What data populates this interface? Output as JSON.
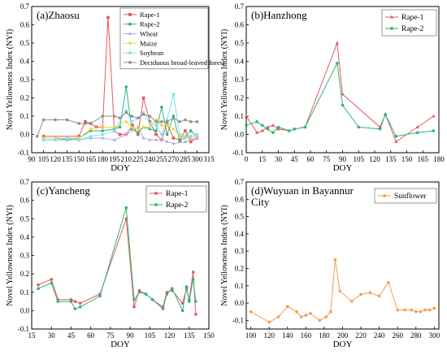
{
  "chart_data": [
    {
      "panel": "a",
      "type": "line",
      "title": "(a)Zhaosu",
      "xlabel": "DOY",
      "ylabel": "Novel Yellowness Index (NYI)",
      "xlim": [
        90,
        315
      ],
      "ylim": [
        -0.1,
        0.7
      ],
      "xticks": [
        90,
        105,
        120,
        135,
        150,
        165,
        180,
        195,
        210,
        225,
        240,
        255,
        270,
        285,
        300,
        315
      ],
      "yticks": [
        -0.1,
        0,
        0.1,
        0.2,
        0.3,
        0.4,
        0.5,
        0.6,
        0.7
      ],
      "legend": "top-right",
      "series": [
        {
          "name": "Rape-1",
          "color": "#e8575c",
          "marker": "square",
          "x": [
            105,
            150,
            158,
            165,
            172,
            180,
            187,
            195,
            202,
            210,
            218,
            225,
            232,
            240,
            248,
            255,
            262,
            270,
            278,
            285,
            292,
            300
          ],
          "y": [
            -0.01,
            -0.01,
            0.07,
            0.06,
            0.04,
            0.04,
            0.64,
            0.02,
            0.0,
            0.0,
            0.05,
            0.0,
            0.2,
            0.07,
            0.0,
            -0.03,
            0.06,
            -0.02,
            -0.03,
            0.02,
            -0.04,
            -0.02
          ]
        },
        {
          "name": "Rape-2",
          "color": "#2bb57a",
          "marker": "circle",
          "x": [
            105,
            120,
            135,
            150,
            165,
            180,
            195,
            202,
            210,
            217,
            225,
            232,
            240,
            248,
            255,
            262,
            270,
            278,
            285,
            292,
            300
          ],
          "y": [
            -0.02,
            -0.02,
            -0.03,
            -0.02,
            0.02,
            0.02,
            0.03,
            0.04,
            0.26,
            0.03,
            0.01,
            0.04,
            0.03,
            0.02,
            0.15,
            0.0,
            0.1,
            -0.04,
            -0.01,
            0.02,
            -0.01
          ]
        },
        {
          "name": "Wheat",
          "color": "#b0aee6",
          "marker": "triangle",
          "x": [
            105,
            120,
            135,
            150,
            165,
            180,
            195,
            210,
            225,
            232,
            240,
            248,
            255,
            262,
            270,
            285,
            300
          ],
          "y": [
            -0.03,
            -0.03,
            -0.03,
            -0.03,
            -0.02,
            -0.02,
            -0.03,
            0.0,
            0.04,
            -0.02,
            -0.03,
            -0.03,
            -0.03,
            -0.04,
            -0.05,
            -0.04,
            -0.02
          ]
        },
        {
          "name": "Maize",
          "color": "#f3d34c",
          "marker": "diamond",
          "x": [
            105,
            120,
            135,
            150,
            165,
            180,
            195,
            210,
            217,
            225,
            232,
            240,
            248,
            255,
            262,
            270,
            278,
            285,
            292,
            300
          ],
          "y": [
            -0.02,
            -0.02,
            -0.02,
            -0.02,
            0.03,
            0.04,
            0.04,
            0.07,
            0.04,
            0.03,
            0.04,
            0.04,
            0.08,
            0.05,
            0.05,
            0.03,
            -0.01,
            -0.01,
            -0.02,
            -0.01
          ]
        },
        {
          "name": "Soybean",
          "color": "#77e2f1",
          "marker": "circle",
          "x": [
            105,
            120,
            135,
            150,
            165,
            180,
            195,
            210,
            217,
            225,
            232,
            240,
            248,
            255,
            262,
            270,
            278,
            285,
            292,
            300
          ],
          "y": [
            -0.03,
            -0.03,
            -0.02,
            -0.03,
            -0.01,
            0.0,
            0.02,
            0.13,
            0.07,
            0.09,
            0.12,
            0.06,
            0.05,
            0.0,
            0.08,
            0.22,
            0.0,
            -0.02,
            -0.01,
            0.0
          ]
        },
        {
          "name": "Deciduous broad-leaved forest",
          "color": "#8e8e8e",
          "marker": "circle",
          "x": [
            97,
            105,
            120,
            135,
            150,
            158,
            165,
            180,
            195,
            202,
            210,
            217,
            225,
            232,
            240,
            248,
            255,
            262,
            270,
            278,
            285,
            292,
            300
          ],
          "y": [
            -0.01,
            0.08,
            0.08,
            0.08,
            0.06,
            0.06,
            0.06,
            0.1,
            0.1,
            0.09,
            0.12,
            0.1,
            0.09,
            0.11,
            0.1,
            0.07,
            0.07,
            0.07,
            0.09,
            0.07,
            0.08,
            0.07,
            0.07
          ]
        }
      ]
    },
    {
      "panel": "b",
      "type": "line",
      "title": "(b)Hanzhong",
      "xlabel": "DOY",
      "ylabel": "Novel Yellowness Index (NYI)",
      "xlim": [
        0,
        180
      ],
      "ylim": [
        -0.1,
        0.7
      ],
      "xticks": [
        0,
        15,
        30,
        45,
        60,
        75,
        90,
        105,
        120,
        135,
        150,
        165,
        180
      ],
      "yticks": [
        -0.1,
        0,
        0.1,
        0.2,
        0.3,
        0.4,
        0.5,
        0.6,
        0.7
      ],
      "legend": "top-right",
      "series": [
        {
          "name": "Rape-1",
          "color": "#e8575c",
          "marker": "triangle",
          "x": [
            0,
            10,
            15,
            20,
            25,
            30,
            40,
            45,
            55,
            85,
            90,
            125,
            130,
            140,
            160,
            175
          ],
          "y": [
            0.1,
            0.01,
            0.02,
            0.04,
            0.05,
            0.03,
            0.02,
            0.03,
            0.04,
            0.5,
            0.22,
            0.04,
            0.11,
            -0.04,
            0.04,
            0.1
          ]
        },
        {
          "name": "Rape-2",
          "color": "#2bb57a",
          "marker": "circle",
          "x": [
            0,
            10,
            15,
            20,
            25,
            30,
            40,
            45,
            55,
            85,
            90,
            105,
            125,
            130,
            140,
            160,
            175
          ],
          "y": [
            0.05,
            0.07,
            0.05,
            0.03,
            0.01,
            0.04,
            0.02,
            0.03,
            0.04,
            0.39,
            0.16,
            0.04,
            0.03,
            0.11,
            -0.01,
            0.01,
            0.02
          ]
        }
      ]
    },
    {
      "panel": "c",
      "type": "line",
      "title": "(c)Yancheng",
      "xlabel": "DOY",
      "ylabel": "Novel Yellowness Index (NYI)",
      "xlim": [
        15,
        150
      ],
      "ylim": [
        -0.1,
        0.7
      ],
      "xticks": [
        15,
        30,
        45,
        60,
        75,
        90,
        105,
        120,
        135,
        150
      ],
      "yticks": [
        -0.1,
        0,
        0.1,
        0.2,
        0.3,
        0.4,
        0.5,
        0.6,
        0.7
      ],
      "legend": "top-right",
      "series": [
        {
          "name": "Rape-1",
          "color": "#e8575c",
          "marker": "circle",
          "x": [
            20,
            30,
            35,
            45,
            48,
            52,
            67,
            87,
            93,
            97,
            102,
            107,
            115,
            118,
            122,
            130,
            133,
            135,
            138,
            140
          ],
          "y": [
            0.14,
            0.17,
            0.06,
            0.06,
            0.05,
            0.04,
            0.09,
            0.5,
            0.02,
            0.11,
            0.09,
            0.06,
            0.02,
            0.1,
            0.11,
            0.04,
            0.12,
            0.06,
            0.21,
            -0.02
          ]
        },
        {
          "name": "Rape-2",
          "color": "#2bb57a",
          "marker": "circle",
          "x": [
            20,
            30,
            35,
            45,
            48,
            52,
            67,
            87,
            93,
            97,
            102,
            107,
            115,
            118,
            122,
            130,
            133,
            135,
            138,
            140
          ],
          "y": [
            0.12,
            0.15,
            0.05,
            0.05,
            0.01,
            0.02,
            0.08,
            0.56,
            0.06,
            0.1,
            0.09,
            0.06,
            0.01,
            0.09,
            0.12,
            0.0,
            0.13,
            0.05,
            0.17,
            0.05
          ]
        }
      ]
    },
    {
      "panel": "d",
      "type": "line",
      "title": "(d)Wuyuan in Bayannur City",
      "title_lines": [
        "(d)Wuyuan in Bayannur",
        "City"
      ],
      "xlabel": "DOY",
      "ylabel": "Novel Yellowness Index (NYI)",
      "xlim": [
        95,
        305
      ],
      "ylim": [
        -0.15,
        0.7
      ],
      "xticks": [
        100,
        120,
        140,
        160,
        180,
        200,
        220,
        240,
        260,
        280,
        300
      ],
      "yticks": [
        -0.1,
        0,
        0.1,
        0.2,
        0.3,
        0.4,
        0.5,
        0.6,
        0.7
      ],
      "legend": "top-right",
      "series": [
        {
          "name": "Sunflower",
          "color": "#f0a155",
          "marker": "circle",
          "x": [
            100,
            120,
            130,
            140,
            150,
            155,
            160,
            165,
            175,
            182,
            187,
            192,
            197,
            210,
            220,
            230,
            240,
            250,
            260,
            268,
            275,
            280,
            285,
            290,
            295,
            300
          ],
          "y": [
            -0.05,
            -0.11,
            -0.08,
            -0.02,
            -0.05,
            -0.08,
            -0.07,
            -0.06,
            -0.1,
            -0.08,
            -0.05,
            0.25,
            0.07,
            0.01,
            0.05,
            0.06,
            0.04,
            0.12,
            -0.04,
            -0.04,
            -0.04,
            -0.05,
            -0.05,
            -0.04,
            -0.04,
            -0.03
          ]
        }
      ]
    }
  ]
}
